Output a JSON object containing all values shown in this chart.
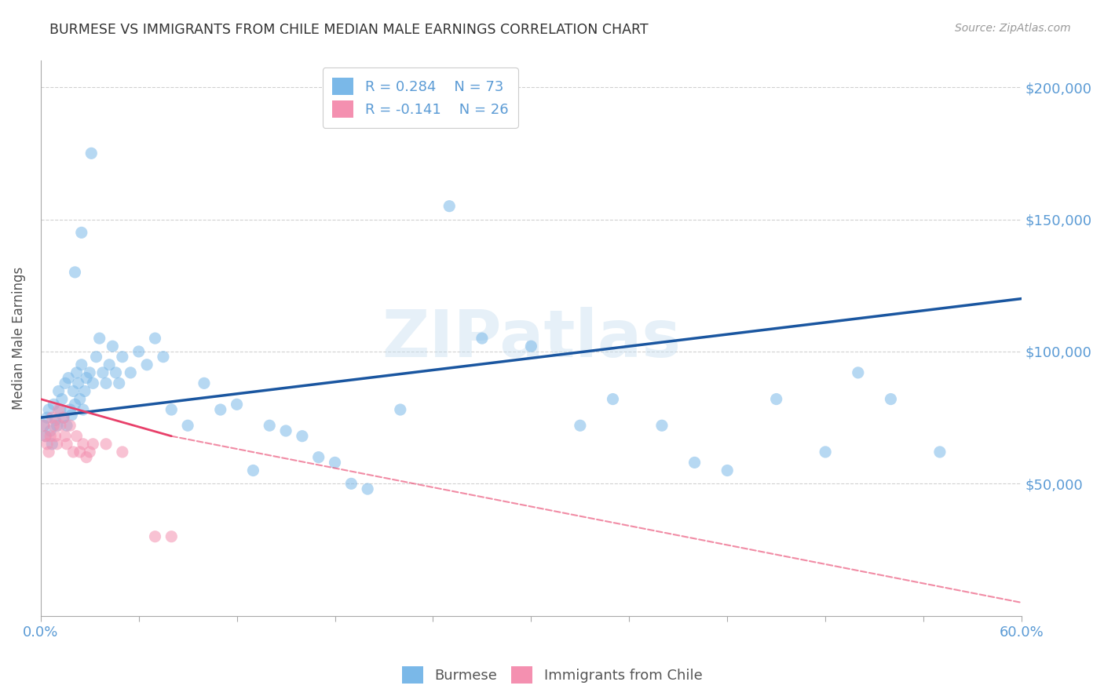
{
  "title": "BURMESE VS IMMIGRANTS FROM CHILE MEDIAN MALE EARNINGS CORRELATION CHART",
  "source": "Source: ZipAtlas.com",
  "ylabel": "Median Male Earnings",
  "yaxis_labels": [
    "$50,000",
    "$100,000",
    "$150,000",
    "$200,000"
  ],
  "yaxis_values": [
    50000,
    100000,
    150000,
    200000
  ],
  "legend_labels": [
    "Burmese",
    "Immigrants from Chile"
  ],
  "legend_r_blue": "R = 0.284",
  "legend_n_blue": "N = 73",
  "legend_r_pink": "R = -0.141",
  "legend_n_pink": "N = 26",
  "blue_color": "#7ab8e8",
  "pink_color": "#f490b0",
  "blue_line_color": "#1a56a0",
  "pink_line_color": "#e8406a",
  "watermark": "ZIPatlas",
  "blue_points_x": [
    0.2,
    0.3,
    0.4,
    0.5,
    0.6,
    0.7,
    0.8,
    0.9,
    1.0,
    1.1,
    1.2,
    1.3,
    1.4,
    1.5,
    1.6,
    1.7,
    1.8,
    1.9,
    2.0,
    2.1,
    2.2,
    2.3,
    2.4,
    2.5,
    2.6,
    2.7,
    2.8,
    3.0,
    3.2,
    3.4,
    3.6,
    3.8,
    4.0,
    4.2,
    4.4,
    4.6,
    4.8,
    5.0,
    5.5,
    6.0,
    6.5,
    7.0,
    7.5,
    8.0,
    9.0,
    10.0,
    11.0,
    12.0,
    13.0,
    14.0,
    15.0,
    16.0,
    17.0,
    18.0,
    19.0,
    20.0,
    22.0,
    25.0,
    27.0,
    30.0,
    33.0,
    35.0,
    38.0,
    40.0,
    42.0,
    45.0,
    48.0,
    50.0,
    52.0,
    55.0,
    2.1,
    2.5,
    3.1
  ],
  "blue_points_y": [
    72000,
    68000,
    75000,
    78000,
    70000,
    65000,
    80000,
    74000,
    72000,
    85000,
    78000,
    82000,
    75000,
    88000,
    72000,
    90000,
    78000,
    76000,
    85000,
    80000,
    92000,
    88000,
    82000,
    95000,
    78000,
    85000,
    90000,
    92000,
    88000,
    98000,
    105000,
    92000,
    88000,
    95000,
    102000,
    92000,
    88000,
    98000,
    92000,
    100000,
    95000,
    105000,
    98000,
    78000,
    72000,
    88000,
    78000,
    80000,
    55000,
    72000,
    70000,
    68000,
    60000,
    58000,
    50000,
    48000,
    78000,
    155000,
    105000,
    102000,
    72000,
    82000,
    72000,
    58000,
    55000,
    82000,
    62000,
    92000,
    82000,
    62000,
    130000,
    145000,
    175000
  ],
  "pink_points_x": [
    0.2,
    0.3,
    0.4,
    0.5,
    0.6,
    0.7,
    0.8,
    0.9,
    1.0,
    1.1,
    1.2,
    1.4,
    1.5,
    1.6,
    1.8,
    2.0,
    2.2,
    2.4,
    2.6,
    2.8,
    3.0,
    3.2,
    4.0,
    5.0,
    7.0,
    8.0
  ],
  "pink_points_y": [
    72000,
    68000,
    65000,
    62000,
    68000,
    75000,
    72000,
    68000,
    65000,
    78000,
    72000,
    75000,
    68000,
    65000,
    72000,
    62000,
    68000,
    62000,
    65000,
    60000,
    62000,
    65000,
    65000,
    62000,
    30000,
    30000
  ],
  "xlim": [
    0,
    60
  ],
  "ylim": [
    0,
    210000
  ],
  "blue_line_x0": 0,
  "blue_line_y0": 75000,
  "blue_line_x1": 60,
  "blue_line_y1": 120000,
  "pink_line_x0": 0,
  "pink_line_y0": 82000,
  "pink_line_x1": 8,
  "pink_line_y1": 68000,
  "pink_dash_x0": 8,
  "pink_dash_y0": 68000,
  "pink_dash_x1": 60,
  "pink_dash_y1": 5000,
  "background_color": "#ffffff",
  "grid_color": "#cccccc",
  "tick_color": "#aaaaaa",
  "label_color": "#5b9bd5",
  "title_color": "#333333",
  "source_color": "#999999"
}
